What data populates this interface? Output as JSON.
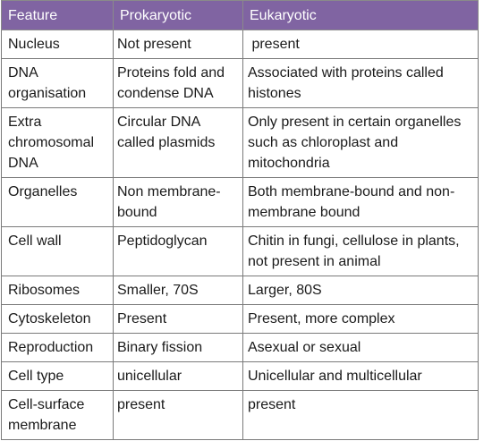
{
  "table": {
    "headers": [
      "Feature",
      "Prokaryotic",
      "Eukaryotic"
    ],
    "rows": [
      [
        "Nucleus",
        "Not present",
        " present"
      ],
      [
        "DNA organisation",
        "Proteins fold and condense DNA",
        "Associated with proteins called histones"
      ],
      [
        "Extra chromosomal DNA",
        "Circular DNA called plasmids",
        "Only present in certain organelles such as chloroplast and mitochondria"
      ],
      [
        "Organelles",
        "Non membrane-bound",
        "Both membrane-bound and non-membrane bound"
      ],
      [
        "Cell wall",
        "Peptidoglycan",
        "Chitin in fungi, cellulose in plants, not present in animal"
      ],
      [
        "Ribosomes",
        "Smaller, 70S",
        "Larger, 80S"
      ],
      [
        "Cytoskeleton",
        "Present",
        "Present, more complex"
      ],
      [
        "Reproduction",
        "Binary fission",
        "Asexual or sexual"
      ],
      [
        "Cell type",
        "unicellular",
        "Unicellular and multicellular"
      ],
      [
        "Cell-surface membrane",
        "present",
        "present"
      ]
    ]
  },
  "colors": {
    "header_background": "#8064a2",
    "header_text": "#ffffff",
    "border": "#7a7a7a"
  }
}
